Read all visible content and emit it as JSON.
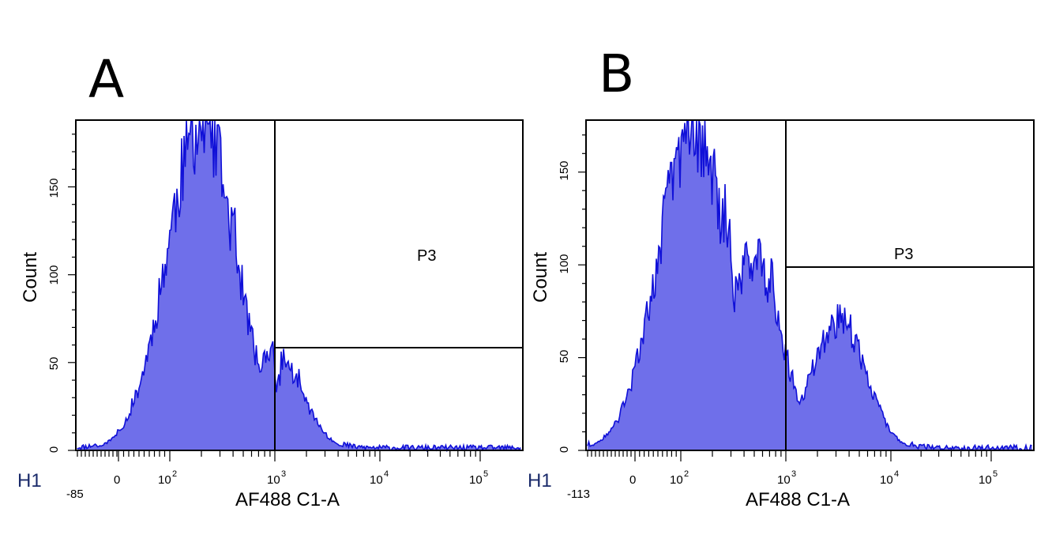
{
  "chart_data": [
    {
      "type": "histogram",
      "panel_label": "A",
      "corner_label": "H1",
      "xlabel": "AF488 C1-A",
      "ylabel": "Count",
      "xscale": "biexponential",
      "x_min_label": "-85",
      "x_tick_labels": [
        {
          "base": "0",
          "sup": ""
        },
        {
          "base": "10",
          "sup": "2"
        },
        {
          "base": "10",
          "sup": "3"
        },
        {
          "base": "10",
          "sup": "4"
        },
        {
          "base": "10",
          "sup": "5"
        }
      ],
      "y_tick_labels": [
        "0",
        "50",
        "100",
        "150"
      ],
      "ylim": [
        0,
        188
      ],
      "gate": {
        "name": "P3",
        "x_start": 1000,
        "y_line": 59
      },
      "fill_color": "#6f6fea",
      "line_color": "#1010d8",
      "peaks": [
        {
          "x": 200,
          "count": 185
        },
        {
          "x": 1000,
          "count": 55
        }
      ]
    },
    {
      "type": "histogram",
      "panel_label": "B",
      "corner_label": "H1",
      "xlabel": "AF488 C1-A",
      "ylabel": "Count",
      "xscale": "biexponential",
      "x_min_label": "-113",
      "x_tick_labels": [
        {
          "base": "0",
          "sup": ""
        },
        {
          "base": "10",
          "sup": "2"
        },
        {
          "base": "10",
          "sup": "3"
        },
        {
          "base": "10",
          "sup": "4"
        },
        {
          "base": "10",
          "sup": "5"
        }
      ],
      "y_tick_labels": [
        "0",
        "50",
        "100",
        "150"
      ],
      "ylim": [
        0,
        178
      ],
      "gate": {
        "name": "P3",
        "x_start": 1000,
        "y_line": 99
      },
      "fill_color": "#6f6fea",
      "line_color": "#1010d8",
      "peaks": [
        {
          "x": 130,
          "count": 175
        },
        {
          "x": 500,
          "count": 105
        },
        {
          "x": 3200,
          "count": 70
        }
      ]
    }
  ]
}
